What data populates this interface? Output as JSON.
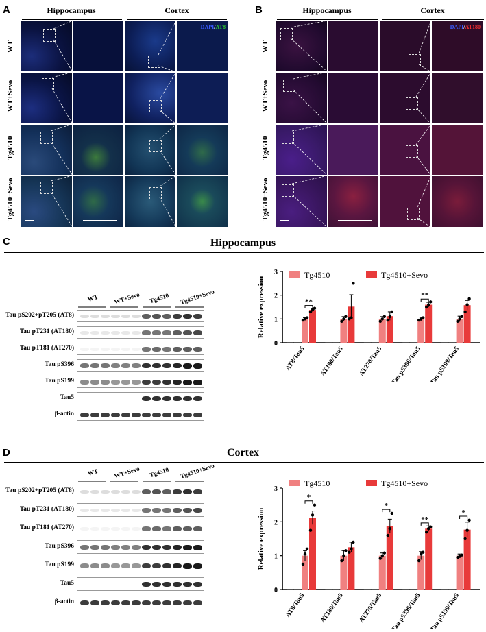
{
  "panels": {
    "A": {
      "letter": "A",
      "header_left": "Hippocampus",
      "header_right": "Cortex",
      "stain_blue": "DAPI",
      "stain_sep": "/",
      "stain_other": "AT8",
      "stain_color": "#2fd12f"
    },
    "B": {
      "letter": "B",
      "header_left": "Hippocampus",
      "header_right": "Cortex",
      "stain_blue": "DAPI",
      "stain_sep": "/",
      "stain_other": "AT180",
      "stain_color": "#e02020"
    },
    "rows": [
      "WT",
      "WT+Sevo",
      "Tg4510",
      "Tg4510+Sevo"
    ]
  },
  "C": {
    "letter": "C",
    "title": "Hippocampus",
    "groups": [
      "WT",
      "WT+Sevo",
      "Tg4510",
      "Tg4510+Sevo"
    ],
    "blots": [
      "Tau pS202+pT205 (AT8)",
      "Tau pT231 (AT180)",
      "Tau pT181 (AT270)",
      "Tau pS396",
      "Tau pS199",
      "Tau5",
      "β-actin"
    ]
  },
  "D": {
    "letter": "D",
    "title": "Cortex",
    "groups": [
      "WT",
      "WT+Sevo",
      "Tg4510",
      "Tg4510+Sevo"
    ],
    "blots": [
      "Tau pS202+pT205 (AT8)",
      "Tau pT231 (AT180)",
      "Tau pT181 (AT270)",
      "Tau pS396",
      "Tau pS199",
      "Tau5",
      "β-actin"
    ]
  },
  "chart_data": [
    {
      "type": "bar",
      "panel": "C",
      "ylabel": "Relative expression",
      "ylim": [
        0,
        3
      ],
      "yticks": [
        "0",
        "1",
        "2",
        "3"
      ],
      "categories": [
        "AT8/Tau5",
        "AT180/Tau5",
        "AT270/Tau5",
        "Tau pS396/Tau5",
        "Tau pS199/Tau5"
      ],
      "series": [
        {
          "name": "Tg4510",
          "color": "#f08080",
          "values": [
            1.0,
            1.0,
            1.0,
            1.0,
            1.0
          ],
          "errors": [
            0.05,
            0.1,
            0.1,
            0.08,
            0.12
          ],
          "points": [
            [
              0.95,
              1.0,
              1.05
            ],
            [
              0.9,
              1.0,
              1.1
            ],
            [
              0.9,
              1.0,
              1.1
            ],
            [
              0.95,
              1.0,
              1.05
            ],
            [
              0.9,
              1.0,
              1.1
            ]
          ]
        },
        {
          "name": "Tg4510+Sevo",
          "color": "#e83a3a",
          "values": [
            1.38,
            1.52,
            1.12,
            1.6,
            1.58
          ],
          "errors": [
            0.06,
            0.5,
            0.18,
            0.1,
            0.2
          ],
          "points": [
            [
              1.3,
              1.38,
              1.45
            ],
            [
              1.0,
              1.05,
              2.5
            ],
            [
              0.95,
              1.1,
              1.3
            ],
            [
              1.5,
              1.6,
              1.72
            ],
            [
              1.3,
              1.6,
              1.85
            ]
          ]
        }
      ],
      "wt_series": [
        {
          "name": "WT",
          "values": [
            0,
            0,
            0,
            0,
            0
          ]
        },
        {
          "name": "WT+Sevo",
          "values": [
            0,
            0,
            0,
            0,
            0
          ]
        }
      ],
      "significance": [
        {
          "category": "AT8/Tau5",
          "label": "**"
        },
        {
          "category": "Tau pS396/Tau5",
          "label": "**"
        }
      ],
      "legend_position": "top"
    },
    {
      "type": "bar",
      "panel": "D",
      "ylabel": "Relative expression",
      "ylim": [
        0,
        3
      ],
      "yticks": [
        "0",
        "1",
        "2",
        "3"
      ],
      "categories": [
        "AT8/Tau5",
        "AT180/Tau5",
        "AT270/Tau5",
        "Tau pS396/Tau5",
        "Tau pS199/Tau5"
      ],
      "series": [
        {
          "name": "Tg4510",
          "color": "#f08080",
          "values": [
            1.0,
            1.0,
            1.0,
            1.0,
            1.0
          ],
          "errors": [
            0.15,
            0.15,
            0.08,
            0.12,
            0.05
          ],
          "points": [
            [
              0.75,
              1.05,
              1.2
            ],
            [
              0.85,
              1.0,
              1.15
            ],
            [
              0.92,
              1.0,
              1.08
            ],
            [
              0.85,
              1.05,
              1.1
            ],
            [
              0.95,
              0.98,
              1.02
            ]
          ]
        },
        {
          "name": "Tg4510+Sevo",
          "color": "#e83a3a",
          "values": [
            2.12,
            1.25,
            1.88,
            1.8,
            1.77
          ],
          "errors": [
            0.2,
            0.15,
            0.2,
            0.08,
            0.22
          ],
          "points": [
            [
              1.75,
              2.2,
              2.5
            ],
            [
              1.1,
              1.2,
              1.4
            ],
            [
              1.6,
              1.8,
              2.25
            ],
            [
              1.7,
              1.8,
              1.85
            ],
            [
              1.5,
              1.75,
              2.05
            ]
          ]
        }
      ],
      "wt_series": [
        {
          "name": "WT",
          "values": [
            0,
            0,
            0,
            0,
            0
          ]
        },
        {
          "name": "WT+Sevo",
          "values": [
            0,
            0,
            0,
            0,
            0
          ]
        }
      ],
      "significance": [
        {
          "category": "AT8/Tau5",
          "label": "*"
        },
        {
          "category": "AT270/Tau5",
          "label": "*"
        },
        {
          "category": "Tau pS396/Tau5",
          "label": "**"
        },
        {
          "category": "Tau pS199/Tau5",
          "label": "*"
        }
      ],
      "legend_position": "top"
    }
  ]
}
